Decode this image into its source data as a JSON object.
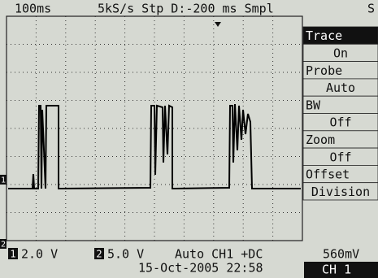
{
  "header": {
    "timebase": "100ms",
    "acquisition": "5kS/s Stp D:-200 ms Smpl",
    "status": "S"
  },
  "menu": {
    "items": [
      "Trace",
      "On",
      "Probe",
      "Auto",
      "BW",
      "Off",
      "Zoom",
      "Off",
      "Offset",
      "Division"
    ]
  },
  "markers": {
    "ch1": "1",
    "ch2": "2"
  },
  "footer": {
    "ch1_marker": "1",
    "ch1_scale": "2.0 V",
    "ch2_marker": "2",
    "ch2_scale": "5.0 V",
    "trigger": "Auto CH1 +DC",
    "datetime": "15-Oct-2005 22:58",
    "readout": "560mV",
    "channel": "CH 1"
  }
}
